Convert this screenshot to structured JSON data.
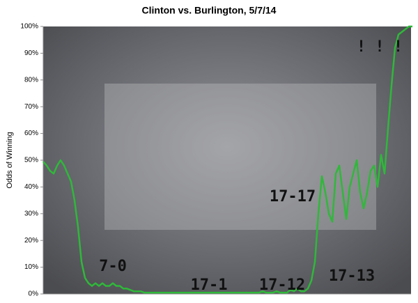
{
  "chart_data": {
    "type": "line",
    "title": "Clinton vs. Burlington, 5/7/14",
    "y_label": "Odds of Winning",
    "ylim": [
      0,
      100
    ],
    "yticks": [
      {
        "value": 0,
        "label": "0%"
      },
      {
        "value": 10,
        "label": "10%"
      },
      {
        "value": 20,
        "label": "20%"
      },
      {
        "value": 30,
        "label": "30%"
      },
      {
        "value": 40,
        "label": "40%"
      },
      {
        "value": 50,
        "label": "50%"
      },
      {
        "value": 60,
        "label": "60%"
      },
      {
        "value": 70,
        "label": "70%"
      },
      {
        "value": 80,
        "label": "80%"
      },
      {
        "value": 90,
        "label": "90%"
      },
      {
        "value": 100,
        "label": "100%"
      }
    ],
    "color": "#2fb83a",
    "values": [
      49.5,
      48,
      46,
      45,
      48,
      50,
      48,
      45,
      42,
      35,
      25,
      12,
      6,
      4,
      3,
      4,
      3,
      4,
      3,
      3,
      4,
      3,
      3,
      2,
      2,
      1.5,
      1,
      1,
      1,
      0.5,
      0.5,
      0.5,
      0.5,
      0.5,
      0.5,
      0.5,
      0.5,
      0.5,
      0.5,
      0.5,
      0.5,
      0.5,
      0.5,
      0.5,
      0.5,
      0.5,
      0.5,
      0.5,
      0.5,
      0.5,
      0.5,
      0.5,
      0.5,
      0.5,
      0.5,
      0.5,
      0.5,
      0.5,
      0.5,
      0.5,
      0.5,
      0.5,
      0.5,
      1,
      0.5,
      0.5,
      0.5,
      1,
      0.5,
      0.5,
      0.5,
      1.5,
      1,
      2,
      1,
      1,
      2,
      5,
      12,
      30,
      44,
      38,
      30,
      27,
      45,
      48,
      38,
      28,
      40,
      45,
      50,
      38,
      32,
      38,
      46,
      48,
      40,
      52,
      45,
      62,
      78,
      92,
      97,
      98,
      99,
      100,
      100
    ],
    "annotations": [
      "7-0",
      "17-1",
      "17-12",
      "17-17",
      "17-13",
      "! ! !"
    ]
  }
}
